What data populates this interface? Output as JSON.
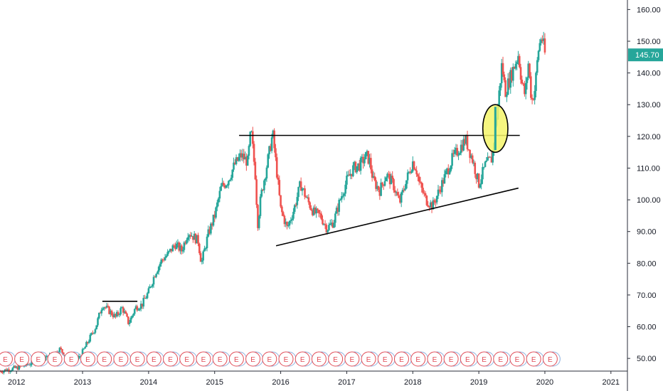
{
  "chart_data": {
    "type": "candlestick",
    "title": "",
    "xlabel": "",
    "ylabel": "",
    "x_ticks": [
      "2012",
      "2013",
      "2014",
      "2015",
      "2016",
      "2017",
      "2018",
      "2019",
      "2020",
      "2021"
    ],
    "x_range": [
      2011.75,
      2021.25
    ],
    "y_ticks": [
      "50.00",
      "60.00",
      "70.00",
      "80.00",
      "90.00",
      "100.00",
      "110.00",
      "120.00",
      "130.00",
      "140.00",
      "150.00",
      "160.00"
    ],
    "y_range": [
      46,
      163
    ],
    "last_price": {
      "label": "145.70",
      "value": 145.7
    },
    "colors": {
      "up": "#26a69a",
      "down": "#ef5350",
      "price_tag": "#26a69a",
      "earnings": "#e04b56",
      "highlight": "#f5f56a"
    },
    "earnings_marker_label": "E",
    "earnings_markers": [
      2011.83,
      2012.08,
      2012.33,
      2012.58,
      2012.83,
      2013.08,
      2013.33,
      2013.58,
      2013.83,
      2014.08,
      2014.33,
      2014.58,
      2014.83,
      2015.08,
      2015.33,
      2015.58,
      2015.83,
      2016.08,
      2016.33,
      2016.58,
      2016.83,
      2017.08,
      2017.33,
      2017.58,
      2017.83,
      2018.08,
      2018.33,
      2018.58,
      2018.83,
      2019.08,
      2019.33,
      2019.58,
      2019.83,
      2020.08
    ],
    "price_path": [
      [
        2011.75,
        46
      ],
      [
        2012.0,
        47
      ],
      [
        2012.3,
        49
      ],
      [
        2012.55,
        51
      ],
      [
        2012.65,
        53
      ],
      [
        2012.8,
        50
      ],
      [
        2012.9,
        49
      ],
      [
        2013.0,
        52
      ],
      [
        2013.1,
        56
      ],
      [
        2013.2,
        60
      ],
      [
        2013.3,
        67
      ],
      [
        2013.4,
        65
      ],
      [
        2013.5,
        63
      ],
      [
        2013.6,
        66
      ],
      [
        2013.7,
        61
      ],
      [
        2013.8,
        66
      ],
      [
        2013.9,
        67
      ],
      [
        2014.0,
        71
      ],
      [
        2014.1,
        77
      ],
      [
        2014.2,
        81
      ],
      [
        2014.3,
        83
      ],
      [
        2014.4,
        86
      ],
      [
        2014.5,
        84
      ],
      [
        2014.6,
        90
      ],
      [
        2014.75,
        87
      ],
      [
        2014.8,
        80
      ],
      [
        2014.9,
        89
      ],
      [
        2015.0,
        95
      ],
      [
        2015.1,
        104
      ],
      [
        2015.2,
        106
      ],
      [
        2015.3,
        111
      ],
      [
        2015.4,
        114
      ],
      [
        2015.5,
        112
      ],
      [
        2015.55,
        122
      ],
      [
        2015.62,
        107
      ],
      [
        2015.65,
        92
      ],
      [
        2015.7,
        101
      ],
      [
        2015.8,
        112
      ],
      [
        2015.88,
        121
      ],
      [
        2015.95,
        107
      ],
      [
        2016.0,
        97
      ],
      [
        2016.1,
        91
      ],
      [
        2016.2,
        97
      ],
      [
        2016.3,
        105
      ],
      [
        2016.4,
        100
      ],
      [
        2016.5,
        96
      ],
      [
        2016.6,
        95
      ],
      [
        2016.7,
        91
      ],
      [
        2016.8,
        93
      ],
      [
        2016.9,
        100
      ],
      [
        2017.0,
        106
      ],
      [
        2017.1,
        110
      ],
      [
        2017.2,
        111
      ],
      [
        2017.3,
        114
      ],
      [
        2017.35,
        112
      ],
      [
        2017.4,
        106
      ],
      [
        2017.5,
        103
      ],
      [
        2017.6,
        108
      ],
      [
        2017.7,
        105
      ],
      [
        2017.8,
        99
      ],
      [
        2017.9,
        106
      ],
      [
        2018.0,
        112
      ],
      [
        2018.05,
        110
      ],
      [
        2018.1,
        105
      ],
      [
        2018.2,
        100
      ],
      [
        2018.3,
        98
      ],
      [
        2018.4,
        103
      ],
      [
        2018.5,
        108
      ],
      [
        2018.6,
        113
      ],
      [
        2018.7,
        116
      ],
      [
        2018.8,
        119
      ],
      [
        2018.9,
        113
      ],
      [
        2019.0,
        105
      ],
      [
        2019.05,
        108
      ],
      [
        2019.1,
        111
      ],
      [
        2019.2,
        113
      ],
      [
        2019.3,
        132
      ],
      [
        2019.35,
        143
      ],
      [
        2019.4,
        134
      ],
      [
        2019.5,
        140
      ],
      [
        2019.6,
        146
      ],
      [
        2019.65,
        137
      ],
      [
        2019.7,
        133
      ],
      [
        2019.75,
        143
      ],
      [
        2019.8,
        131
      ],
      [
        2019.85,
        135
      ],
      [
        2019.9,
        147
      ],
      [
        2019.95,
        152
      ],
      [
        2020.0,
        146
      ]
    ],
    "annotations": {
      "resistance_line": [
        [
          2015.37,
          120.3
        ],
        [
          2019.62,
          120.3
        ]
      ],
      "support_line": [
        [
          2015.93,
          85.5
        ],
        [
          2019.6,
          103.7
        ]
      ],
      "consolidation_line": [
        [
          2013.3,
          68
        ],
        [
          2013.83,
          68
        ]
      ],
      "breakout_ellipse": {
        "x": 2019.25,
        "y": 122.5,
        "rx_years": 0.19,
        "ry_price": 7.5
      }
    }
  }
}
